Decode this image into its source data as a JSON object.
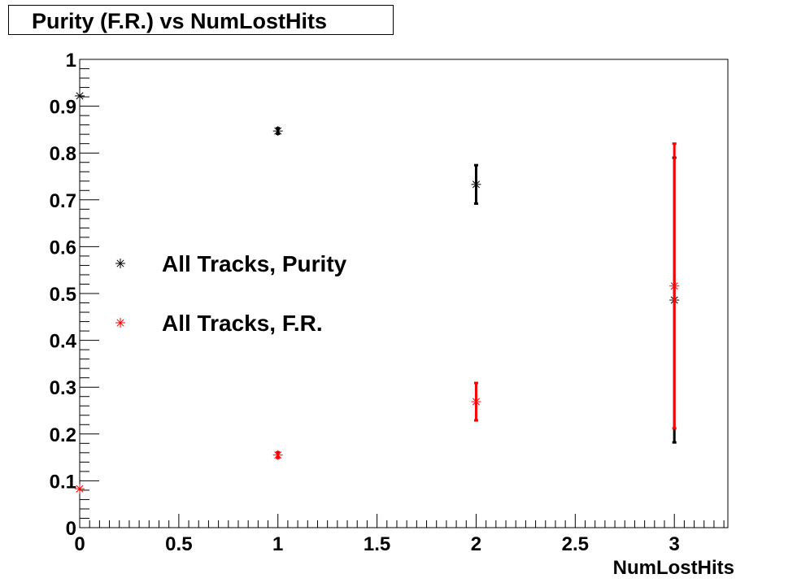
{
  "chart_data": {
    "type": "scatter",
    "title": "Purity (F.R.) vs NumLostHits",
    "xlabel": "NumLostHits",
    "ylabel": "",
    "xlim": [
      0,
      3.27
    ],
    "ylim": [
      0,
      1
    ],
    "x_ticks": [
      "0",
      "0.5",
      "1",
      "1.5",
      "2",
      "2.5",
      "3"
    ],
    "y_ticks": [
      "0",
      "0.1",
      "0.2",
      "0.3",
      "0.4",
      "0.5",
      "0.6",
      "0.7",
      "0.8",
      "0.9",
      "1"
    ],
    "grid": false,
    "legend_position": "center-left",
    "series": [
      {
        "name": "All Tracks, Purity",
        "color": "#000000",
        "marker": "asterisk",
        "x": [
          0,
          1,
          2,
          3
        ],
        "y": [
          0.922,
          0.847,
          0.733,
          0.486
        ],
        "yerr": [
          0.0,
          0.006,
          0.041,
          0.304
        ]
      },
      {
        "name": "All Tracks, F.R.",
        "color": "#ff0000",
        "marker": "asterisk",
        "x": [
          0,
          1,
          2,
          3
        ],
        "y": [
          0.083,
          0.155,
          0.269,
          0.516
        ],
        "yerr": [
          0.0,
          0.006,
          0.04,
          0.304
        ]
      }
    ]
  }
}
